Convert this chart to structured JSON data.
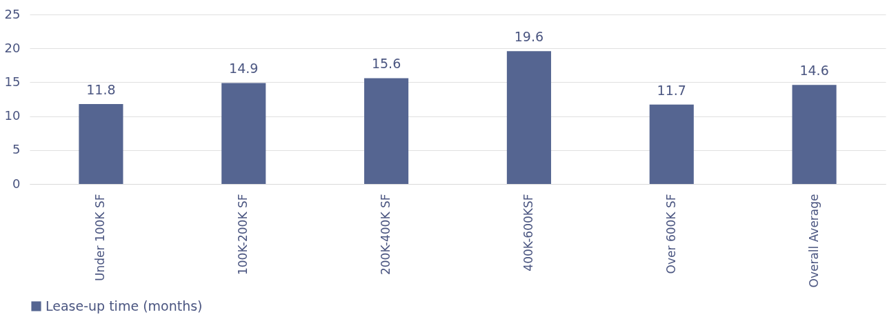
{
  "chart_data": {
    "type": "bar",
    "categories": [
      "Under 100K SF",
      "100K-200K SF",
      "200K-400K SF",
      "400K-600KSF",
      "Over 600K SF",
      "Overall Average"
    ],
    "series": [
      {
        "name": "Lease-up time (months)",
        "color": "#556591",
        "values": [
          11.8,
          14.9,
          15.6,
          19.6,
          11.7,
          14.6
        ]
      }
    ],
    "ylim": [
      0,
      25
    ],
    "yticks": [
      0,
      5,
      10,
      15,
      20,
      25
    ],
    "grid": "y",
    "legend": "bottom",
    "data_labels": true
  }
}
